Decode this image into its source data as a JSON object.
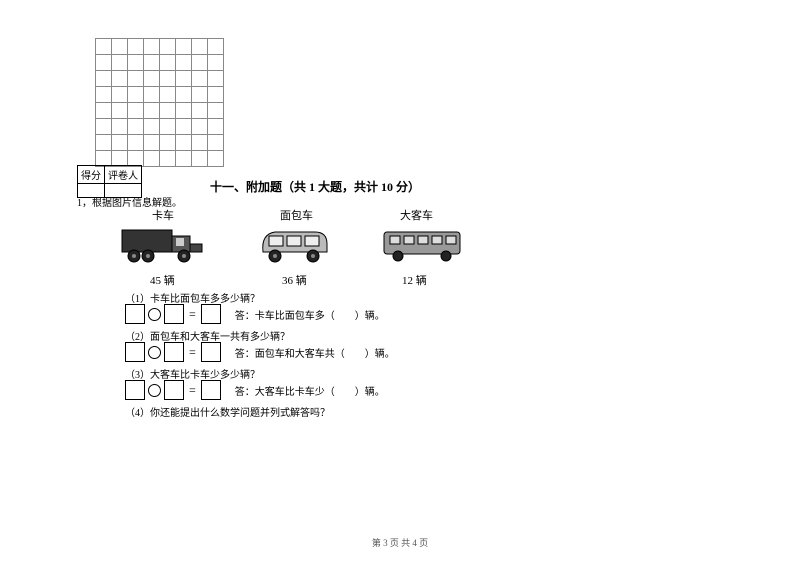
{
  "grid": {
    "rows": 8,
    "cols": 8
  },
  "scorebox": {
    "left": "得分",
    "right": "评卷人"
  },
  "section_title": "十一、附加题（共 1 大题，共计 10 分）",
  "q_intro": "1，根据图片信息解题。",
  "vehicles": {
    "truck": {
      "label": "卡车",
      "count": "45 辆"
    },
    "van": {
      "label": "面包车",
      "count": "36 辆"
    },
    "bus": {
      "label": "大客车",
      "count": "12 辆"
    }
  },
  "sub": {
    "q1": "（1）卡车比面包车多多少辆？",
    "a1": "答：卡车比面包车多（　　）辆。",
    "q2": "（2）面包车和大客车一共有多少辆？",
    "a2": "答：面包车和大客车共（　　）辆。",
    "q3": "（3）大客车比卡车少多少辆？",
    "a3": "答：大客车比卡车少（　　）辆。",
    "q4": "（4）你还能提出什么数学问题并列式解答吗？"
  },
  "footer": "第 3 页  共 4 页"
}
